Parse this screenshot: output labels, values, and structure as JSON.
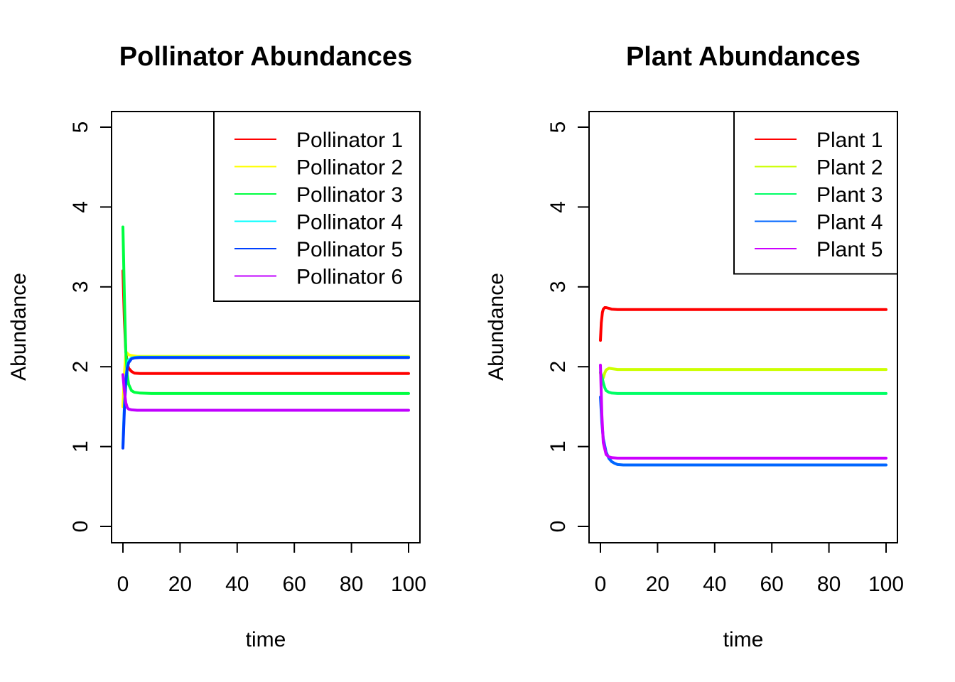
{
  "chart_data": [
    {
      "type": "line",
      "title": "Pollinator Abundances",
      "xlabel": "time",
      "ylabel": "Abundance",
      "xlim": [
        0,
        100
      ],
      "ylim": [
        0,
        5
      ],
      "x_ticks": [
        0,
        20,
        40,
        60,
        80,
        100
      ],
      "y_ticks": [
        0,
        1,
        2,
        3,
        4,
        5
      ],
      "legend_position": "top-right",
      "series": [
        {
          "name": "Pollinator 1",
          "color": "#FF0000",
          "x": [
            0,
            0.5,
            1,
            1.5,
            2,
            3,
            4,
            6,
            10,
            20,
            100
          ],
          "values": [
            3.2,
            2.6,
            2.2,
            2.05,
            1.98,
            1.94,
            1.92,
            1.915,
            1.915,
            1.915,
            1.915
          ]
        },
        {
          "name": "Pollinator 2",
          "color": "#FFFF00",
          "x": [
            0,
            0.5,
            1,
            1.5,
            2,
            3,
            5,
            10,
            100
          ],
          "values": [
            1.5,
            1.9,
            2.15,
            2.17,
            2.15,
            2.14,
            2.13,
            2.13,
            2.13
          ]
        },
        {
          "name": "Pollinator 3",
          "color": "#00FF40",
          "x": [
            0,
            0.5,
            1,
            1.5,
            2,
            3,
            4,
            6,
            10,
            20,
            100
          ],
          "values": [
            3.75,
            2.9,
            2.2,
            1.9,
            1.78,
            1.7,
            1.68,
            1.67,
            1.665,
            1.665,
            1.665
          ]
        },
        {
          "name": "Pollinator 4",
          "color": "#00FFFF",
          "x": [
            0,
            0.5,
            1,
            1.5,
            2,
            3,
            5,
            10,
            100
          ],
          "values": [
            1.0,
            1.5,
            1.85,
            2.0,
            2.08,
            2.11,
            2.12,
            2.12,
            2.12
          ]
        },
        {
          "name": "Pollinator 5",
          "color": "#0040FF",
          "x": [
            0,
            0.5,
            1,
            1.5,
            2,
            3,
            4,
            6,
            10,
            100
          ],
          "values": [
            0.98,
            1.45,
            1.8,
            1.98,
            2.05,
            2.1,
            2.11,
            2.115,
            2.115,
            2.115
          ]
        },
        {
          "name": "Pollinator 6",
          "color": "#C000FF",
          "x": [
            0,
            0.5,
            1,
            1.5,
            2,
            3,
            5,
            10,
            100
          ],
          "values": [
            1.9,
            1.7,
            1.55,
            1.49,
            1.47,
            1.46,
            1.455,
            1.455,
            1.455
          ]
        }
      ]
    },
    {
      "type": "line",
      "title": "Plant Abundances",
      "xlabel": "time",
      "ylabel": "Abundance",
      "xlim": [
        0,
        100
      ],
      "ylim": [
        0,
        5
      ],
      "x_ticks": [
        0,
        20,
        40,
        60,
        80,
        100
      ],
      "y_ticks": [
        0,
        1,
        2,
        3,
        4,
        5
      ],
      "legend_position": "top-right",
      "series": [
        {
          "name": "Plant 1",
          "color": "#FF0000",
          "x": [
            0,
            0.3,
            0.7,
            1,
            1.5,
            2,
            3,
            4,
            6,
            10,
            100
          ],
          "values": [
            2.33,
            2.55,
            2.68,
            2.72,
            2.74,
            2.74,
            2.73,
            2.72,
            2.715,
            2.715,
            2.715
          ]
        },
        {
          "name": "Plant 2",
          "color": "#CCFF00",
          "x": [
            0,
            0.5,
            1,
            1.5,
            2,
            3,
            4,
            6,
            10,
            100
          ],
          "values": [
            1.92,
            1.85,
            1.86,
            1.92,
            1.96,
            1.98,
            1.975,
            1.965,
            1.965,
            1.965
          ]
        },
        {
          "name": "Plant 3",
          "color": "#00FF66",
          "x": [
            0,
            0.5,
            1,
            1.5,
            2,
            3,
            4,
            6,
            10,
            100
          ],
          "values": [
            1.93,
            1.88,
            1.8,
            1.74,
            1.7,
            1.68,
            1.67,
            1.665,
            1.665,
            1.665
          ]
        },
        {
          "name": "Plant 4",
          "color": "#0066FF",
          "x": [
            0,
            0.5,
            1,
            2,
            3,
            4,
            5,
            6,
            8,
            10,
            100
          ],
          "values": [
            1.62,
            1.3,
            1.1,
            0.93,
            0.85,
            0.81,
            0.79,
            0.775,
            0.77,
            0.77,
            0.77
          ]
        },
        {
          "name": "Plant 5",
          "color": "#CC00FF",
          "x": [
            0,
            0.5,
            1,
            2,
            3,
            4,
            6,
            10,
            100
          ],
          "values": [
            2.02,
            1.4,
            1.05,
            0.9,
            0.87,
            0.86,
            0.855,
            0.855,
            0.855
          ]
        }
      ]
    }
  ]
}
